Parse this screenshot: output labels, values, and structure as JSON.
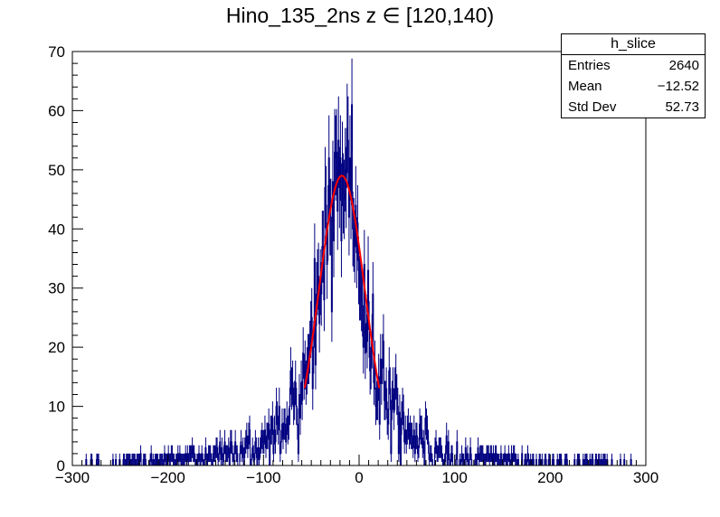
{
  "chart_data": {
    "type": "histogram",
    "title": "Hino_135_2ns z  ∈ [120,140)",
    "xlim": [
      -300,
      300
    ],
    "ylim": [
      0,
      70
    ],
    "x_ticks": [
      "−300",
      "−200",
      "−100",
      "0",
      "100",
      "200",
      "300"
    ],
    "y_ticks": [
      "0",
      "10",
      "20",
      "30",
      "40",
      "50",
      "60",
      "70"
    ],
    "histogram_color": "#000080",
    "fit_color": "#ff0000",
    "envelope": {
      "x": [
        -300,
        -250,
        -200,
        -150,
        -120,
        -100,
        -80,
        -70,
        -60,
        -50,
        -40,
        -35,
        -30,
        -25,
        -20,
        -15,
        -10,
        -5,
        0,
        5,
        10,
        15,
        20,
        30,
        40,
        60,
        80,
        100,
        150,
        200,
        250,
        300
      ],
      "y": [
        0,
        0.5,
        0.8,
        1.5,
        2.5,
        3.5,
        6,
        9,
        14,
        21,
        30,
        37,
        44,
        48,
        50,
        49,
        46,
        41,
        36,
        30,
        24,
        19,
        15,
        11,
        8,
        4.5,
        2.5,
        1.5,
        0.8,
        0.5,
        0.3,
        0
      ]
    },
    "fit": {
      "type": "gaussian",
      "x_range": [
        -57,
        21
      ],
      "peak": 49,
      "mean": -18,
      "sigma": 24
    }
  },
  "stats": {
    "name": "h_slice",
    "rows": [
      {
        "label": "Entries",
        "value": "2640"
      },
      {
        "label": "Mean",
        "value": "−12.52"
      },
      {
        "label": "Std Dev",
        "value": "52.73"
      }
    ]
  }
}
